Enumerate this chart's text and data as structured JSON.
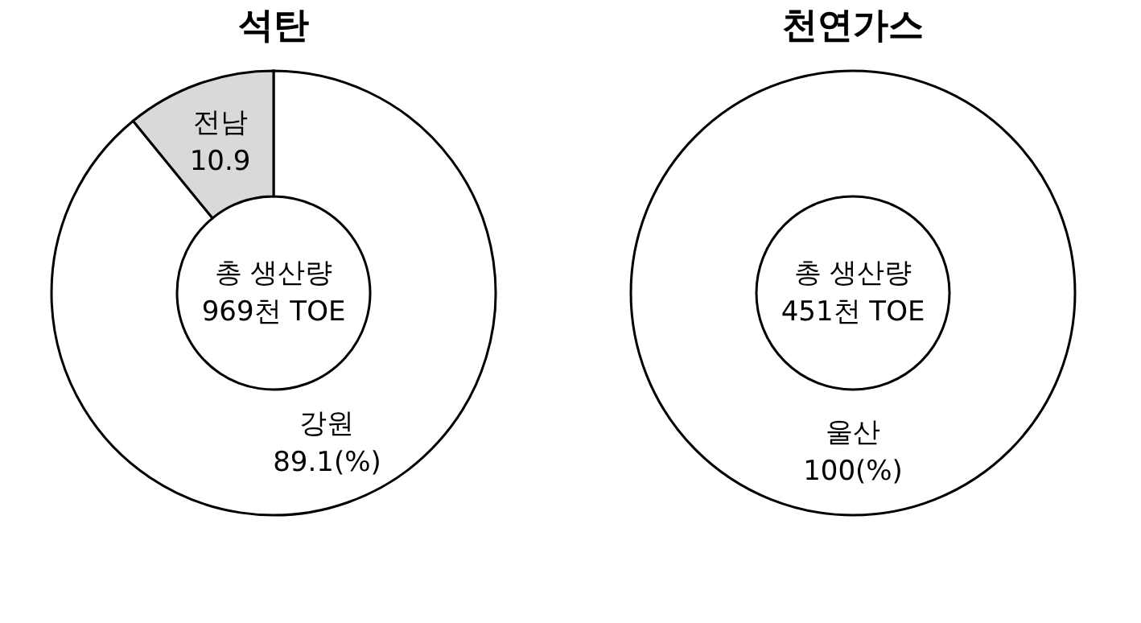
{
  "chart_data": [
    {
      "type": "donut",
      "title": "석탄",
      "categories": [
        "강원",
        "전남"
      ],
      "values": [
        89.1,
        10.9
      ],
      "colors": [
        "#ffffff",
        "#d9d9d9"
      ],
      "value_labels": [
        "89.1(%)",
        "10.9"
      ],
      "annotations": [
        "총 생산량",
        "969천 TOE"
      ]
    },
    {
      "type": "donut",
      "title": "천연가스",
      "categories": [
        "울산"
      ],
      "values": [
        100
      ],
      "colors": [
        "#ffffff"
      ],
      "value_labels": [
        "100(%)"
      ],
      "annotations": [
        "총 생산량",
        "451천 TOE"
      ]
    }
  ]
}
